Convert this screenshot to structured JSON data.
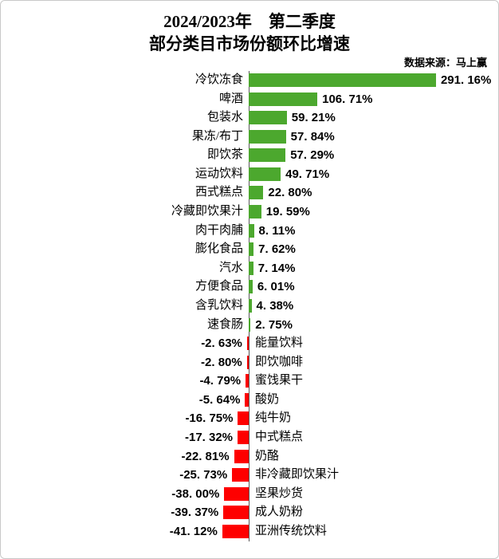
{
  "header": {
    "title_line1": "2024/2023年　第二季度",
    "title_line2": "部分类目市场份额环比增速",
    "source": "数据来源：马上赢"
  },
  "colors": {
    "positive_bar": "#4CA82E",
    "negative_bar": "#FE0000",
    "axis": "#595959",
    "card_border": "#C9C9C9",
    "background": "#FFFFFF"
  },
  "chart_data": {
    "type": "bar",
    "orientation": "horizontal",
    "title": "2024/2023年 第二季度 部分类目市场份额环比增速",
    "source_note": "数据来源：马上赢",
    "value_unit": "%",
    "xlim": [
      -41.12,
      291.16
    ],
    "grid": false,
    "legend": false,
    "categories": [
      "冷饮冻食",
      "啤酒",
      "包装水",
      "果冻/布丁",
      "即饮茶",
      "运动饮料",
      "西式糕点",
      "冷藏即饮果汁",
      "肉干肉脯",
      "膨化食品",
      "汽水",
      "方便食品",
      "含乳饮料",
      "速食肠",
      "能量饮料",
      "即饮咖啡",
      "蜜饯果干",
      "酸奶",
      "纯牛奶",
      "中式糕点",
      "奶酪",
      "非冷藏即饮果汁",
      "坚果炒货",
      "成人奶粉",
      "亚洲传统饮料"
    ],
    "values": [
      291.16,
      106.71,
      59.21,
      57.84,
      57.29,
      49.71,
      22.8,
      19.59,
      8.11,
      7.62,
      7.14,
      6.01,
      4.38,
      2.75,
      -2.63,
      -2.8,
      -4.79,
      -5.64,
      -16.75,
      -17.32,
      -22.81,
      -25.73,
      -38.0,
      -39.37,
      -41.12
    ],
    "value_labels": [
      "291. 16%",
      "106. 71%",
      "59. 21%",
      "57. 84%",
      "57. 29%",
      "49. 71%",
      "22. 80%",
      "19. 59%",
      "8. 11%",
      "7. 62%",
      "7. 14%",
      "6. 01%",
      "4. 38%",
      "2. 75%",
      "-2. 63%",
      "-2. 80%",
      "-4. 79%",
      "-5. 64%",
      "-16. 75%",
      "-17. 32%",
      "-22. 81%",
      "-25. 73%",
      "-38. 00%",
      "-39. 37%",
      "-41. 12%"
    ]
  }
}
